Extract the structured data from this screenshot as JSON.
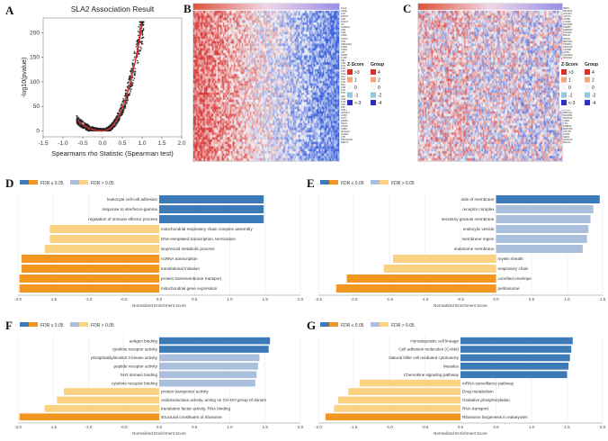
{
  "panels": {
    "A": "A",
    "B": "B",
    "C": "C",
    "D": "D",
    "E": "E",
    "F": "F",
    "G": "G"
  },
  "panel_a": {
    "title": "SLA2 Association Result",
    "xlabel": "Spearmans rho Statistic (Spearman test)",
    "ylabel": "-log10(pvalue)",
    "xticks": [
      "-1.5",
      "-1.0",
      "-0.5",
      "0.0",
      "0.5",
      "1.0",
      "1.5",
      "2.0"
    ],
    "yticks": [
      "0",
      "50",
      "100",
      "150",
      "200"
    ],
    "colors": {
      "points": "#222222",
      "fit": "#e03030",
      "highlight": "#cc2222"
    }
  },
  "heatmap_legend": {
    "zscore_title": "Z-Score",
    "group_title": "Group",
    "zscore_items": [
      ">3",
      "1",
      "0",
      "-1",
      "<-3"
    ],
    "group_items": [
      "4",
      "2",
      "0",
      "-2",
      "-4"
    ],
    "colors": [
      "#d73027",
      "#f4a582",
      "#f7f7f7",
      "#92c5de",
      "#2c2cc8"
    ]
  },
  "genes_b": [
    "SLA2",
    "CD3E",
    "LCK",
    "ZAP70",
    "CD2",
    "CD247",
    "ITK",
    "SH2D1A",
    "CD5",
    "CD6",
    "CD96",
    "TRAT1",
    "SIT1",
    "UBASH3A",
    "CD3D",
    "CD3G",
    "LAT",
    "GZMK",
    "CCR7",
    "SELL",
    "CD27",
    "IL7R",
    "PTPRC",
    "CXCR3",
    "CD48",
    "SLAMF6",
    "SASH3",
    "CORO1A",
    "RAC2",
    "CD53",
    "LCP2",
    "PTPN7",
    "ARHGAP9",
    "CD37",
    "FYB",
    "SPN",
    "PIK3CD",
    "IKZF1",
    "GPR171",
    "CD52",
    "CST7",
    "GZMA",
    "NKG7",
    "CTSW",
    "CD8A",
    "RASAL3",
    "ACAP1",
    "LTB",
    "TBC1D10C",
    "SEPT1"
  ],
  "genes_c": [
    "MRPL",
    "NDUFA4",
    "UQCRH",
    "COX7C",
    "ATP5E",
    "COX6C",
    "NDUFB3",
    "PSMB3",
    "SNRPD2",
    "POLR2L",
    "RPL36",
    "RPS21",
    "MRPS21",
    "TIMM13",
    "NDUFS5",
    "COX5B",
    "ATP5J",
    "UQCR10",
    "NDUFA1",
    "NDUFB2",
    "SEC61G",
    "TOMM7",
    "PFDN5",
    "EIF3K",
    "SNRPG",
    "LSM3",
    "NOP10",
    "RPL39",
    "MRPL33",
    "POLR2K",
    "COX17",
    "ATP5I",
    "NDUFC1",
    "UQCRQ",
    "CHCHD2",
    "PSMA7",
    "SNRPE",
    "RPS28",
    "MRPL51",
    "NDUFB1",
    "NDUFA2",
    "LSM5",
    "TXN",
    "ROMO1",
    "MRPS33",
    "COX7B",
    "ATP5L",
    "SEM1",
    "NDUFV2",
    "BOLA3"
  ],
  "fdr_legend": {
    "sig": "FDR ≤ 0.05",
    "nonsig": "FDR > 0.05"
  },
  "nes_axis_label": "Normalized Enrichment Score",
  "chart_data": [
    {
      "id": "D",
      "type": "bar",
      "orientation": "horizontal",
      "xlabel": "Normalized Enrichment Score",
      "xlim": [
        -2.0,
        2.0
      ],
      "xticks": [
        "-2.0",
        "-1.5",
        "-1.0",
        "-0.5",
        "0.0",
        "0.5",
        "1.0",
        "1.5",
        "2.0"
      ],
      "categories": [
        "leukocyte cell-cell adhesion",
        "response to interferon-gamma",
        "regulation of immune effector process",
        "mitochondrial respiratory chain complex assembly",
        "DNA-templated transcription, termination",
        "isoprenoid metabolic process",
        "ncRNA transcription",
        "translational initiation",
        "protein transmembrane transport",
        "mitochondrial gene expression"
      ],
      "values": [
        1.48,
        1.48,
        1.48,
        -1.55,
        -1.55,
        -1.62,
        -1.95,
        -1.95,
        -1.98,
        -1.98
      ],
      "significant": [
        true,
        true,
        true,
        false,
        false,
        false,
        true,
        true,
        true,
        true
      ]
    },
    {
      "id": "E",
      "type": "bar",
      "orientation": "horizontal",
      "xlabel": "Normalized Enrichment Score",
      "xlim": [
        -2.5,
        1.5
      ],
      "xticks": [
        "-2.5",
        "-2.0",
        "-1.5",
        "-1.0",
        "-0.5",
        "0.0",
        "0.5",
        "1.0",
        "1.5"
      ],
      "categories": [
        "side of membrane",
        "receptor complex",
        "secretory granule membrane",
        "endocytic vesicle",
        "membrane region",
        "endosome membrane",
        "myelin sheath",
        "respiratory chain",
        "cornified envelope",
        "peribosome"
      ],
      "values": [
        1.46,
        1.37,
        1.33,
        1.3,
        1.28,
        1.22,
        -1.45,
        -1.58,
        -2.1,
        -2.25
      ],
      "significant": [
        true,
        false,
        false,
        false,
        false,
        false,
        false,
        false,
        true,
        true
      ]
    },
    {
      "id": "F",
      "type": "bar",
      "orientation": "horizontal",
      "xlabel": "Normalized Enrichment Score",
      "xlim": [
        -2.0,
        2.0
      ],
      "xticks": [
        "-2.0",
        "-1.5",
        "-1.0",
        "-0.5",
        "0.0",
        "0.5",
        "1.0",
        "1.5",
        "2.0"
      ],
      "categories": [
        "antigen binding",
        "cytokine receptor activity",
        "phosphatidylinositol 3-kinase activity",
        "peptide receptor activity",
        "SH3 domain binding",
        "cytokine receptor binding",
        "protein transporter activity",
        "oxidoreductase activity, acting on CH-OH group of donors",
        "translation factor activity, RNA binding",
        "structural constituent of ribosome"
      ],
      "values": [
        1.57,
        1.55,
        1.42,
        1.4,
        1.38,
        1.36,
        -1.35,
        -1.45,
        -1.62,
        -1.98
      ],
      "significant": [
        true,
        true,
        false,
        false,
        false,
        false,
        false,
        false,
        false,
        true
      ]
    },
    {
      "id": "G",
      "type": "bar",
      "orientation": "horizontal",
      "xlabel": "Normalized Enrichment Score",
      "xlim": [
        -2.0,
        2.0
      ],
      "xticks": [
        "-2.0",
        "-1.5",
        "-1.0",
        "-0.5",
        "0.0",
        "0.5",
        "1.0",
        "1.5",
        "2.0"
      ],
      "categories": [
        "Hematopoietic cell lineage",
        "Cell adhesion molecules (CAMs)",
        "Natural killer cell mediated cytotoxicity",
        "Measles",
        "Chemokine signaling pathway",
        "mRNA surveillance pathway",
        "Drug metabolism",
        "Oxidative phosphorylation",
        "RNA transport",
        "Ribosome biogenesis in eukaryotes"
      ],
      "values": [
        1.58,
        1.56,
        1.54,
        1.52,
        1.5,
        -1.42,
        -1.58,
        -1.72,
        -1.78,
        -1.9
      ],
      "significant": [
        true,
        true,
        true,
        true,
        true,
        false,
        false,
        false,
        false,
        true
      ]
    }
  ],
  "colors": {
    "pos_sig": "#3c7ab8",
    "pos_nonsig": "#a9bfdc",
    "neg_sig": "#f29620",
    "neg_nonsig": "#fbd182"
  }
}
